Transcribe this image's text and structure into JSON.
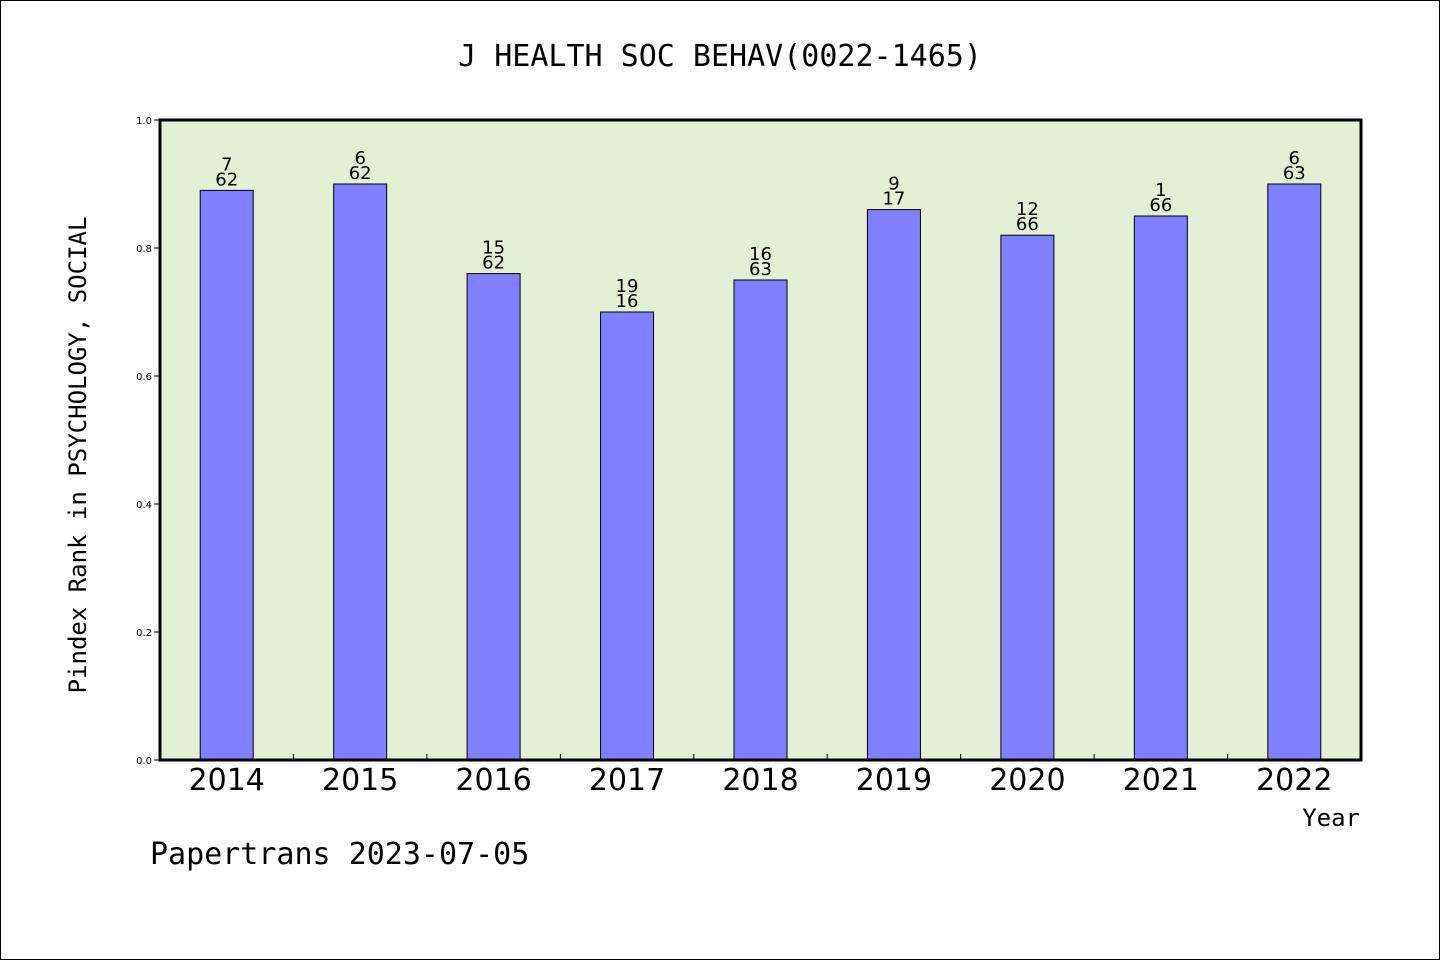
{
  "chart_data": {
    "type": "bar",
    "title": "J HEALTH SOC BEHAV(0022-1465)",
    "xlabel": "Year",
    "ylabel": "Pindex Rank in PSYCHOLOGY, SOCIAL",
    "ylim": [
      0,
      1.0
    ],
    "yticks": [
      "0.0",
      "0.2",
      "0.4",
      "0.6",
      "0.8",
      "1.0"
    ],
    "categories": [
      "2014",
      "2015",
      "2016",
      "2017",
      "2018",
      "2019",
      "2020",
      "2021",
      "2022"
    ],
    "values": [
      0.89,
      0.9,
      0.76,
      0.7,
      0.75,
      0.86,
      0.82,
      0.85,
      0.9
    ],
    "label_top": [
      "7",
      "6",
      "15",
      "19",
      "16",
      "9",
      "12",
      "1",
      "6"
    ],
    "label_bottom": [
      "62",
      "62",
      "62",
      "16",
      "63",
      "17",
      "66",
      "66",
      "63"
    ],
    "grid": false,
    "bar_color": "#8080ff",
    "plot_background": "#e2f0d6"
  },
  "footer": {
    "text": "Papertrans 2023-07-05"
  }
}
